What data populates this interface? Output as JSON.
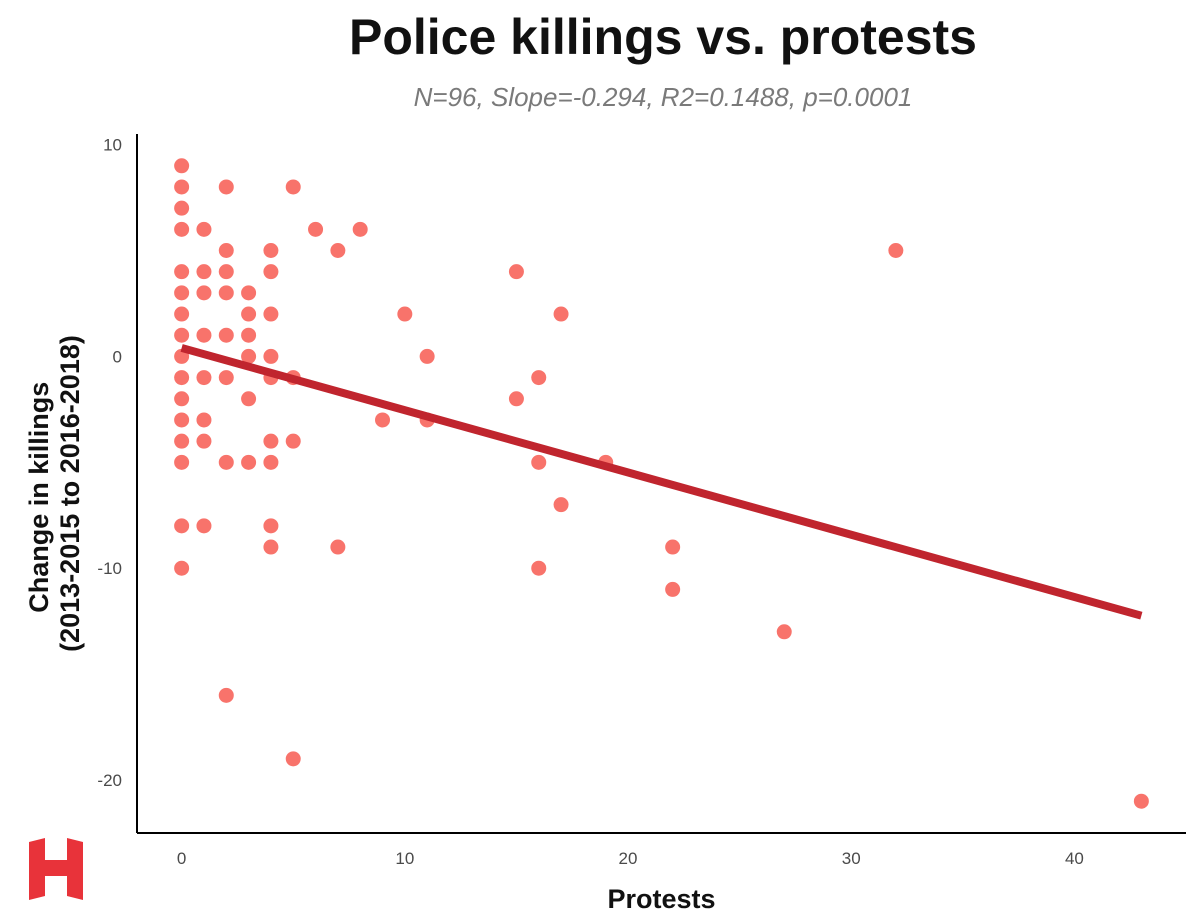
{
  "colors": {
    "point": "#F8736B",
    "trend": "#C0252E",
    "axis": "#000000",
    "logo": "#E8333A"
  },
  "icon": "h-logo-icon",
  "chart_data": {
    "type": "scatter",
    "title": "Police killings vs. protests",
    "subtitle": "N=96, Slope=-0.294, R2=0.1488, p=0.0001",
    "xlabel": "Protests",
    "ylabel_lines": [
      "Change in killings",
      "(2013-2015 to 2016-2018)"
    ],
    "xlim": [
      -2,
      45
    ],
    "ylim": [
      -22.5,
      10.5
    ],
    "xticks": [
      0,
      10,
      20,
      30,
      40
    ],
    "yticks": [
      10,
      0,
      -10,
      -20
    ],
    "grid": false,
    "points": [
      [
        0,
        9
      ],
      [
        0,
        8
      ],
      [
        0,
        7
      ],
      [
        0,
        6
      ],
      [
        0,
        4
      ],
      [
        0,
        3
      ],
      [
        0,
        2
      ],
      [
        0,
        1
      ],
      [
        0,
        0
      ],
      [
        0,
        -1
      ],
      [
        0,
        -2
      ],
      [
        0,
        -3
      ],
      [
        0,
        -4
      ],
      [
        0,
        -5
      ],
      [
        0,
        -8
      ],
      [
        0,
        -10
      ],
      [
        1,
        6
      ],
      [
        1,
        4
      ],
      [
        1,
        3
      ],
      [
        1,
        1
      ],
      [
        1,
        -1
      ],
      [
        1,
        -3
      ],
      [
        1,
        -4
      ],
      [
        1,
        -8
      ],
      [
        2,
        8
      ],
      [
        2,
        5
      ],
      [
        2,
        4
      ],
      [
        2,
        3
      ],
      [
        2,
        1
      ],
      [
        2,
        -1
      ],
      [
        2,
        -5
      ],
      [
        2,
        -16
      ],
      [
        3,
        3
      ],
      [
        3,
        2
      ],
      [
        3,
        1
      ],
      [
        3,
        0
      ],
      [
        3,
        -2
      ],
      [
        3,
        -5
      ],
      [
        4,
        5
      ],
      [
        4,
        4
      ],
      [
        4,
        2
      ],
      [
        4,
        0
      ],
      [
        4,
        -1
      ],
      [
        4,
        -4
      ],
      [
        4,
        -5
      ],
      [
        4,
        -8
      ],
      [
        4,
        -9
      ],
      [
        5,
        8
      ],
      [
        5,
        -1
      ],
      [
        5,
        -4
      ],
      [
        5,
        -19
      ],
      [
        6,
        6
      ],
      [
        7,
        5
      ],
      [
        7,
        -9
      ],
      [
        8,
        6
      ],
      [
        9,
        -3
      ],
      [
        10,
        2
      ],
      [
        11,
        0
      ],
      [
        11,
        -3
      ],
      [
        15,
        4
      ],
      [
        15,
        -2
      ],
      [
        16,
        -1
      ],
      [
        16,
        -5
      ],
      [
        16,
        -10
      ],
      [
        17,
        2
      ],
      [
        17,
        -7
      ],
      [
        19,
        -5
      ],
      [
        22,
        -9
      ],
      [
        22,
        -11
      ],
      [
        27,
        -13
      ],
      [
        32,
        5
      ],
      [
        43,
        -21
      ]
    ],
    "trend_line": {
      "x": [
        0,
        43
      ],
      "y": [
        0.4,
        -12.24
      ]
    }
  }
}
